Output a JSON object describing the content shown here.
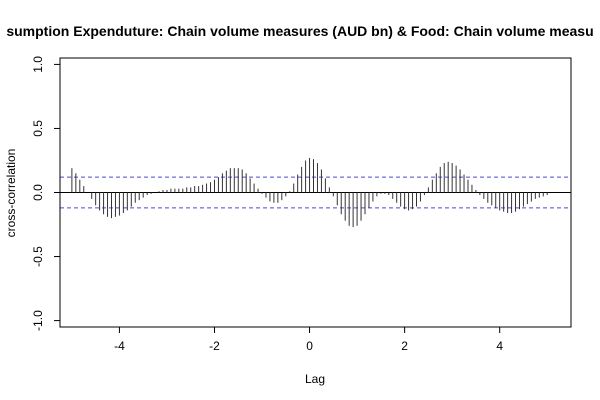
{
  "chart_data": {
    "type": "bar",
    "title": "sumption Expenduture: Chain volume measures (AUD bn) & Food: Chain volume measu",
    "xlabel": "Lag",
    "ylabel": "cross-correlation",
    "xlim": [
      -5.25,
      5.5
    ],
    "ylim": [
      -1.05,
      1.05
    ],
    "x_ticks": [
      -4,
      -2,
      0,
      2,
      4
    ],
    "x_tick_labels": [
      "-4",
      "-2",
      "0",
      "2",
      "4"
    ],
    "y_ticks": [
      -1.0,
      -0.5,
      0.0,
      0.5,
      1.0
    ],
    "y_tick_labels": [
      "-1.0",
      "-0.5",
      "0.0",
      "0.5",
      "1.0"
    ],
    "confidence_band": [
      0.12,
      -0.12
    ],
    "lag_start": -5,
    "lag_step": 0.08333,
    "values": [
      0.19,
      0.15,
      0.1,
      0.05,
      0.0,
      -0.05,
      -0.1,
      -0.14,
      -0.17,
      -0.19,
      -0.2,
      -0.19,
      -0.18,
      -0.16,
      -0.14,
      -0.11,
      -0.08,
      -0.06,
      -0.04,
      -0.02,
      -0.01,
      0.0,
      0.01,
      0.02,
      0.02,
      0.03,
      0.03,
      0.03,
      0.03,
      0.04,
      0.04,
      0.05,
      0.05,
      0.06,
      0.07,
      0.08,
      0.1,
      0.12,
      0.15,
      0.17,
      0.19,
      0.19,
      0.19,
      0.18,
      0.15,
      0.11,
      0.07,
      0.03,
      -0.01,
      -0.04,
      -0.07,
      -0.08,
      -0.08,
      -0.06,
      -0.03,
      0.01,
      0.07,
      0.14,
      0.2,
      0.25,
      0.27,
      0.26,
      0.23,
      0.18,
      0.11,
      0.04,
      -0.03,
      -0.1,
      -0.17,
      -0.22,
      -0.26,
      -0.27,
      -0.26,
      -0.22,
      -0.17,
      -0.12,
      -0.07,
      -0.03,
      -0.01,
      -0.01,
      -0.02,
      -0.05,
      -0.08,
      -0.11,
      -0.13,
      -0.14,
      -0.13,
      -0.11,
      -0.07,
      -0.02,
      0.04,
      0.1,
      0.15,
      0.2,
      0.23,
      0.24,
      0.23,
      0.21,
      0.18,
      0.14,
      0.1,
      0.06,
      0.02,
      -0.02,
      -0.05,
      -0.08,
      -0.1,
      -0.12,
      -0.14,
      -0.15,
      -0.16,
      -0.16,
      -0.15,
      -0.13,
      -0.11,
      -0.09,
      -0.07,
      -0.05,
      -0.04,
      -0.03,
      -0.02
    ]
  }
}
